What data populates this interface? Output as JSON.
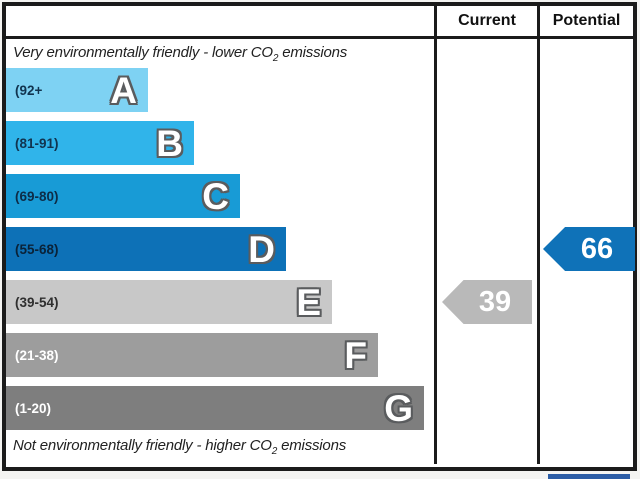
{
  "header": {
    "current": "Current",
    "potential": "Potential"
  },
  "notes": {
    "top_prefix": "Very environmentally friendly - lower CO",
    "top_sub": "2",
    "top_suffix": " emissions",
    "bottom_prefix": "Not environmentally friendly - higher CO",
    "bottom_sub": "2",
    "bottom_suffix": " emissions"
  },
  "chart_data": {
    "type": "bar",
    "description": "Environmental impact CO2 rating bands A-G with current and potential scores",
    "categories": [
      "A",
      "B",
      "C",
      "D",
      "E",
      "F",
      "G"
    ],
    "bands": [
      {
        "letter": "A",
        "range": "(92+",
        "min": 92,
        "max": 100,
        "color": "#7ed2f3",
        "label_color": "#11344f"
      },
      {
        "letter": "B",
        "range": "(81-91)",
        "min": 81,
        "max": 91,
        "color": "#30b4ea",
        "label_color": "#11344f"
      },
      {
        "letter": "C",
        "range": "(69-80)",
        "min": 69,
        "max": 80,
        "color": "#189bd6",
        "label_color": "#0d2c47"
      },
      {
        "letter": "D",
        "range": "(55-68)",
        "min": 55,
        "max": 68,
        "color": "#0d71b7",
        "label_color": "#0a2238"
      },
      {
        "letter": "E",
        "range": "(39-54)",
        "min": 39,
        "max": 54,
        "color": "#c8c8c8",
        "label_color": "#2f2f2f"
      },
      {
        "letter": "F",
        "range": "(21-38)",
        "min": 21,
        "max": 38,
        "color": "#9d9d9d",
        "label_color": "#ffffff"
      },
      {
        "letter": "G",
        "range": "(1-20)",
        "min": 1,
        "max": 20,
        "color": "#7e7e7e",
        "label_color": "#ffffff"
      }
    ],
    "current": {
      "value": "39",
      "band": "E",
      "arrow_color": "#b9b9b9"
    },
    "potential": {
      "value": "66",
      "band": "D",
      "arrow_color": "#0f72b8"
    },
    "legend_position": "top",
    "grid": false
  }
}
